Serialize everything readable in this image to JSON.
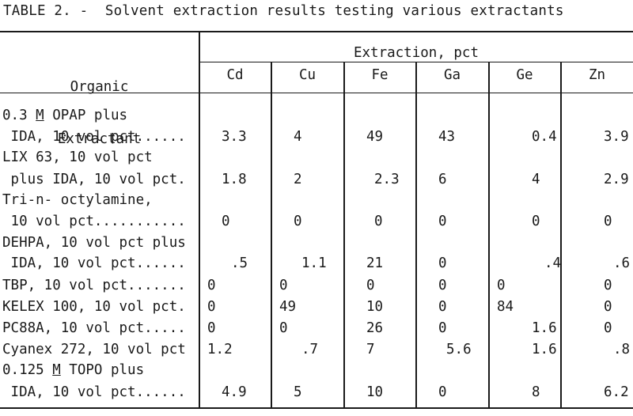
{
  "title": "TABLE 2. -  Solvent extraction results testing various extractants",
  "header": {
    "organic_line1": "Organic",
    "organic_line2": "Extractant",
    "group": "Extraction, pct",
    "columns": [
      "Cd",
      "Cu",
      "Fe",
      "Ga",
      "Ge",
      "Zn"
    ]
  },
  "rows": [
    {
      "line1_pre": "0.3 ",
      "line1_m": "M",
      "line1_post": " OPAP plus",
      "line2": " IDA, 10 vol pct......",
      "values": [
        "3.3",
        "4",
        "49",
        "43",
        "0.4",
        "3.9"
      ]
    },
    {
      "line1_pre": "LIX 63, 10 vol pct",
      "line1_m": "",
      "line1_post": "",
      "line2": " plus IDA, 10 vol pct.",
      "values": [
        "1.8",
        "2",
        "2.3",
        "6",
        "4",
        "2.9"
      ]
    },
    {
      "line1_pre": "Tri-n- octylamine,",
      "line1_m": "",
      "line1_post": "",
      "line2": " 10 vol pct...........",
      "values": [
        "0",
        "0",
        "0",
        "0",
        "0",
        "0"
      ]
    },
    {
      "line1_pre": "DEHPA, 10 vol pct plus",
      "line1_m": "",
      "line1_post": "",
      "line2": " IDA, 10 vol pct......",
      "values": [
        ".5",
        "1.1",
        "21",
        "0",
        ".4",
        ".6"
      ]
    },
    {
      "line1_pre": "TBP, 10 vol pct.......",
      "line1_m": "",
      "line1_post": "",
      "line2": "",
      "values": [
        "0",
        "0",
        "0",
        "0",
        "0",
        "0"
      ]
    },
    {
      "line1_pre": "KELEX 100, 10 vol pct.",
      "line1_m": "",
      "line1_post": "",
      "line2": "",
      "values": [
        "0",
        "49",
        "10",
        "0",
        "84",
        "0"
      ]
    },
    {
      "line1_pre": "PC88A, 10 vol pct.....",
      "line1_m": "",
      "line1_post": "",
      "line2": "",
      "values": [
        "0",
        "0",
        "26",
        "0",
        "1.6",
        "0"
      ]
    },
    {
      "line1_pre": "Cyanex 272, 10 vol pct",
      "line1_m": "",
      "line1_post": "",
      "line2": "",
      "values": [
        "1.2",
        ".7",
        "7",
        "5.6",
        "1.6",
        ".8"
      ]
    },
    {
      "line1_pre": "0.125 ",
      "line1_m": "M",
      "line1_post": " TOPO plus",
      "line2": " IDA, 10 vol pct......",
      "values": [
        "4.9",
        "5",
        "10",
        "0",
        "8",
        "6.2"
      ]
    }
  ]
}
